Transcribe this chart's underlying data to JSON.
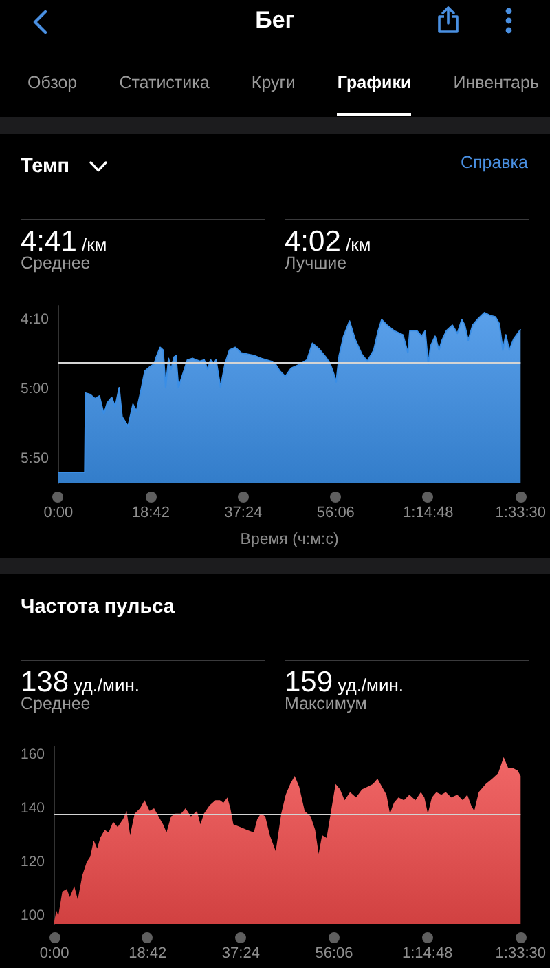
{
  "chart_data": [
    {
      "type": "other",
      "title": "Бег",
      "annotations": [
        "Обзор",
        "Статистика",
        "Круги",
        "Графики",
        "Инвентарь"
      ]
    },
    {
      "type": "line",
      "title": "Темп",
      "xlabel": "Время (ч:м:с)",
      "x": [
        0,
        5.35,
        5.5,
        6.46,
        7.4,
        8.3,
        9.2,
        9.9,
        10.8,
        11.5,
        12.3,
        12.9,
        14.1,
        15.1,
        15.8,
        16.6,
        17.5,
        18.5,
        19.4,
        19.8,
        20.6,
        21.2,
        21.7,
        22.3,
        22.8,
        23.4,
        23.8,
        24.3,
        25.2,
        26.1,
        27.2,
        28.6,
        29.5,
        30.2,
        30.8,
        31.4,
        31.9,
        32.8,
        33.7,
        34.6,
        35.8,
        37.0,
        38.3,
        39.7,
        41.1,
        43.0,
        43.9,
        44.8,
        45.9,
        47.1,
        49.0,
        50.3,
        51.4,
        52.7,
        54.1,
        55.0,
        55.7,
        56.2,
        56.8,
        57.7,
        58.9,
        60.0,
        61.4,
        62.5,
        63.8,
        64.7,
        65.4,
        66.5,
        67.9,
        69.7,
        70.7,
        71.1,
        72.5,
        73.5,
        74.2,
        74.8,
        75.3,
        76.2,
        77.0,
        77.6,
        78.5,
        79.7,
        80.7,
        81.6,
        82.2,
        82.9,
        83.8,
        85.0,
        86.2,
        87.3,
        88.4,
        89.2,
        89.9,
        90.5,
        91.2,
        92.1,
        92.9,
        93.5
      ],
      "series": [
        {
          "color": "#3a8ee6",
          "values": [
            360,
            360,
            303,
            304,
            307,
            305,
            318,
            310,
            306,
            313,
            299,
            320,
            327,
            311,
            316,
            303,
            287,
            284,
            282,
            277,
            270,
            272,
            299,
            278,
            286,
            277,
            276,
            299,
            289,
            279,
            278,
            280,
            279,
            286,
            279,
            282,
            279,
            299,
            282,
            272,
            270,
            274,
            275,
            276,
            278,
            280,
            282,
            287,
            291,
            285,
            282,
            279,
            267,
            271,
            277,
            282,
            289,
            295,
            276,
            262,
            251,
            264,
            275,
            280,
            272,
            258,
            250,
            254,
            258,
            261,
            274,
            258,
            258,
            262,
            258,
            282,
            269,
            262,
            272,
            265,
            258,
            254,
            260,
            250,
            254,
            265,
            254,
            249,
            245,
            247,
            248,
            253,
            272,
            261,
            272,
            264,
            260,
            257
          ],
          "lower": [
            360,
            360,
            303,
            304,
            307,
            305,
            318,
            310,
            306,
            313,
            299,
            320,
            327,
            311,
            316,
            303,
            287,
            284,
            282,
            277,
            270,
            272,
            299,
            278,
            286,
            277,
            276,
            299,
            289,
            279,
            278,
            280,
            279,
            286,
            279,
            282,
            279,
            299,
            282,
            272,
            270,
            274,
            275,
            276,
            278,
            280,
            282,
            287,
            291,
            285,
            282,
            279,
            267,
            271,
            277,
            282,
            289,
            295,
            276,
            262,
            251,
            264,
            275,
            280,
            272,
            258,
            250,
            254,
            258,
            261,
            274,
            258,
            258,
            262,
            258,
            282,
            269,
            262,
            272,
            265,
            258,
            254,
            260,
            250,
            254,
            265,
            254,
            249,
            245,
            247,
            248,
            253,
            272,
            261,
            272,
            264,
            260,
            257
          ],
          "upper": [
            368,
            368,
            368,
            368,
            368,
            368,
            368,
            368,
            368,
            368,
            368,
            368,
            368,
            368,
            368,
            368,
            368,
            368,
            368,
            368,
            368,
            368,
            368,
            368,
            368,
            368,
            368,
            368,
            368,
            368,
            368,
            368,
            368,
            368,
            368,
            368,
            368,
            368,
            368,
            368,
            368,
            368,
            368,
            368,
            368,
            368,
            368,
            368,
            368,
            368,
            368,
            368,
            368,
            368,
            368,
            368,
            368,
            368,
            368,
            368,
            368,
            368,
            368,
            368,
            368,
            368,
            368,
            368,
            368,
            368,
            368,
            368,
            368,
            368,
            368,
            368,
            368,
            368,
            368,
            368,
            368,
            368,
            368,
            368,
            368,
            368,
            368,
            368,
            368,
            368,
            368,
            368,
            368,
            368,
            368,
            368,
            368,
            368
          ]
        }
      ],
      "xlim": [
        0,
        93.5
      ],
      "xticks": [
        {
          "value": 0,
          "label": "0:00"
        },
        {
          "value": 18.7,
          "label": "18:42"
        },
        {
          "value": 37.4,
          "label": "37:24"
        },
        {
          "value": 56.1,
          "label": "56:06"
        },
        {
          "value": 74.8,
          "label": "1:14:48"
        },
        {
          "value": 93.5,
          "label": "1:33:30"
        }
      ],
      "ylim": [
        368,
        240
      ],
      "yticks": [
        {
          "value": 250,
          "label": "4:10"
        },
        {
          "value": 300,
          "label": "5:00"
        },
        {
          "value": 350,
          "label": "5:50"
        }
      ],
      "ref_lines": [
        {
          "axis": "y",
          "value": 281,
          "color": "#d4d4d4"
        }
      ],
      "annotations": [
        "Справка",
        "4:41 /км",
        "Среднее",
        "4:02 /км",
        "Лучшие"
      ]
    },
    {
      "type": "area",
      "title": "Частота пульса",
      "color": "#ee4a4a",
      "x": [
        0,
        0.4,
        0.8,
        1.6,
        2.5,
        3.1,
        4.0,
        4.7,
        5.6,
        6.5,
        7.2,
        7.9,
        8.6,
        9.2,
        10.1,
        10.9,
        11.8,
        12.7,
        13.8,
        14.5,
        15.2,
        16.1,
        17.2,
        18.1,
        19.1,
        20.0,
        20.9,
        21.8,
        22.5,
        23.4,
        24.3,
        25.4,
        26.3,
        27.4,
        28.6,
        29.3,
        30.0,
        31.1,
        32.3,
        33.2,
        33.9,
        34.7,
        35.3,
        35.9,
        37.3,
        38.6,
        40.0,
        40.7,
        41.4,
        42.3,
        43.2,
        44.4,
        45.5,
        46.4,
        47.3,
        48.2,
        49.1,
        50.2,
        51.4,
        52.3,
        53.0,
        53.7,
        54.6,
        55.5,
        56.4,
        57.3,
        58.2,
        59.3,
        60.5,
        61.7,
        62.8,
        63.9,
        64.8,
        65.7,
        66.6,
        67.3,
        68.1,
        69.0,
        70.1,
        71.2,
        72.4,
        73.5,
        74.2,
        74.9,
        75.7,
        76.6,
        77.6,
        78.5,
        79.6,
        80.8,
        81.9,
        82.8,
        83.6,
        84.2,
        85.1,
        86.5,
        87.8,
        89.0,
        90.1,
        91.0,
        91.9,
        92.9,
        93.5
      ],
      "values": [
        98,
        102,
        100,
        109,
        110,
        107,
        111,
        106,
        115,
        120,
        122,
        128,
        125,
        129,
        132,
        131,
        135,
        133,
        136,
        139,
        130,
        138,
        140,
        143,
        139,
        140,
        137,
        134,
        131,
        137,
        138,
        138,
        140,
        137,
        139,
        134,
        138,
        141,
        143,
        143,
        142,
        144,
        140,
        134,
        133,
        132,
        131,
        136,
        138,
        137,
        130,
        124,
        138,
        145,
        149,
        152,
        148,
        139,
        137,
        132,
        123,
        130,
        129,
        139,
        149,
        147,
        143,
        146,
        144,
        147,
        148,
        149,
        151,
        148,
        145,
        138,
        142,
        144,
        143,
        145,
        143,
        146,
        144,
        138,
        144,
        146,
        145,
        146,
        144,
        145,
        143,
        145,
        141,
        139,
        146,
        149,
        151,
        153,
        159,
        155,
        155,
        154,
        152
      ],
      "xlim": [
        0,
        93.5
      ],
      "xticks": [
        {
          "value": 0,
          "label": "0:00"
        },
        {
          "value": 18.7,
          "label": "18:42"
        },
        {
          "value": 37.4,
          "label": "37:24"
        },
        {
          "value": 56.1,
          "label": "56:06"
        },
        {
          "value": 74.8,
          "label": "1:14:48"
        },
        {
          "value": 93.5,
          "label": "1:33:30"
        }
      ],
      "ylim": [
        97,
        163
      ],
      "yticks": [
        100,
        120,
        140,
        160
      ],
      "ref_lines": [
        {
          "axis": "y",
          "value": 138,
          "color": "#d4d4d4"
        }
      ],
      "annotations": [
        "138 уд./мин.",
        "Среднее",
        "159 уд./мин.",
        "Максимум"
      ]
    }
  ]
}
